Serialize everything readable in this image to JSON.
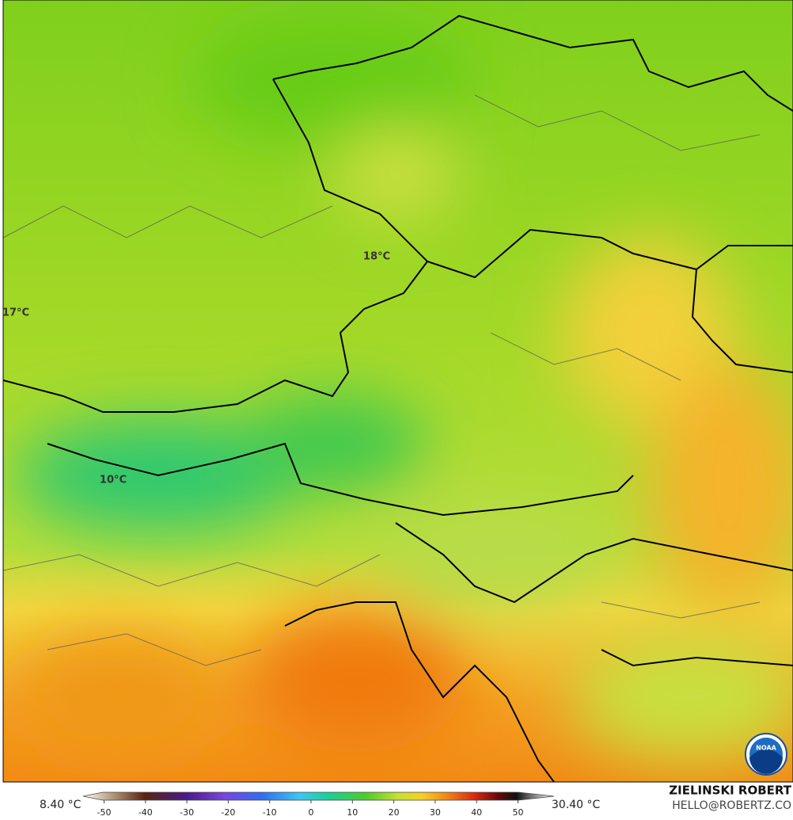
{
  "map": {
    "labels": [
      {
        "text": "18°C"
      },
      {
        "text": "17°C"
      },
      {
        "text": "10°C"
      }
    ],
    "legend": {
      "min_label": "8.40 °C",
      "max_label": "30.40 °C",
      "ticks": [
        -50,
        -40,
        -30,
        -20,
        -10,
        0,
        10,
        20,
        30,
        40,
        50
      ]
    },
    "credit": {
      "name": "ZIELINSKI ROBERT",
      "contact": "HELLO@ROBERTZ.CO",
      "logo": "NOAA"
    }
  }
}
